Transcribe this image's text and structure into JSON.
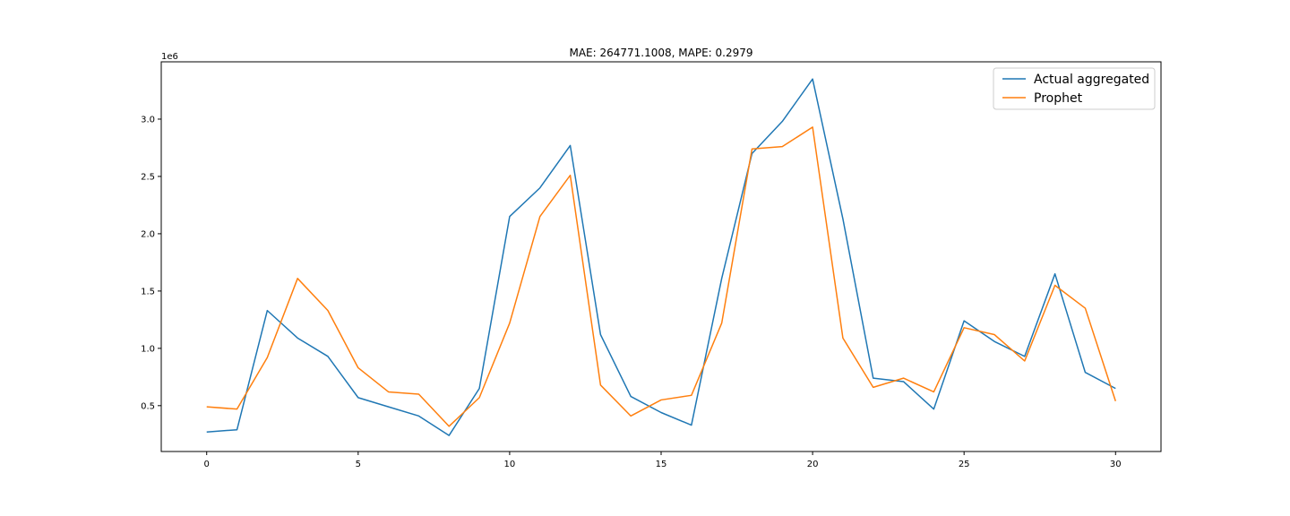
{
  "chart_data": {
    "type": "line",
    "title": "MAE: 264771.1008, MAPE: 0.2979",
    "xlabel": "",
    "ylabel": "",
    "y_offset_label": "1e6",
    "x": [
      0,
      1,
      2,
      3,
      4,
      5,
      6,
      7,
      8,
      9,
      10,
      11,
      12,
      13,
      14,
      15,
      16,
      17,
      18,
      19,
      20,
      21,
      22,
      23,
      24,
      25,
      26,
      27,
      28,
      29,
      30
    ],
    "xlim": [
      -1.5,
      31.5
    ],
    "ylim": [
      0.1,
      3.5
    ],
    "xticks": [
      0,
      5,
      10,
      15,
      20,
      25,
      30
    ],
    "xtick_labels": [
      "0",
      "5",
      "10",
      "15",
      "20",
      "25",
      "30"
    ],
    "yticks": [
      0.5,
      1.0,
      1.5,
      2.0,
      2.5,
      3.0
    ],
    "ytick_labels": [
      "0.5",
      "1.0",
      "1.5",
      "2.0",
      "2.5",
      "3.0"
    ],
    "grid": false,
    "legend_position": "top-right",
    "series": [
      {
        "name": "Actual aggregated",
        "color": "#1f77b4",
        "values": [
          0.27,
          0.29,
          1.33,
          1.09,
          0.93,
          0.57,
          0.49,
          0.41,
          0.24,
          0.65,
          2.15,
          2.4,
          2.77,
          1.12,
          0.58,
          0.44,
          0.33,
          1.61,
          2.7,
          2.98,
          3.35,
          2.13,
          0.74,
          0.71,
          0.47,
          1.24,
          1.06,
          0.93,
          1.65,
          0.79,
          0.65
        ]
      },
      {
        "name": "Prophet",
        "color": "#ff7f0e",
        "values": [
          0.49,
          0.47,
          0.92,
          1.61,
          1.33,
          0.83,
          0.62,
          0.6,
          0.32,
          0.57,
          1.22,
          2.15,
          2.51,
          0.68,
          0.41,
          0.55,
          0.59,
          1.22,
          2.74,
          2.76,
          2.93,
          1.09,
          0.66,
          0.74,
          0.62,
          1.18,
          1.12,
          0.89,
          1.55,
          1.35,
          0.54
        ]
      }
    ]
  }
}
